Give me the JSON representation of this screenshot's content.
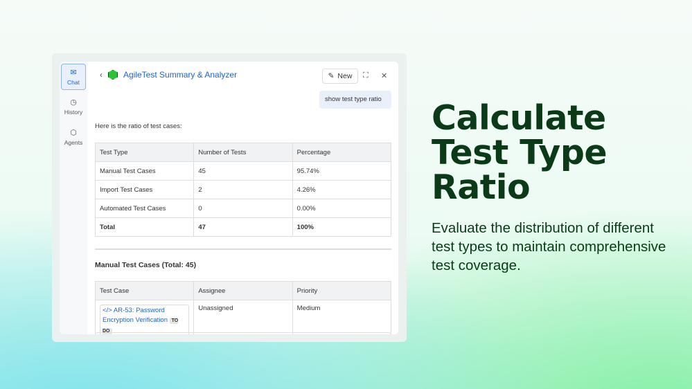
{
  "sidebar": {
    "items": [
      {
        "label": "Chat",
        "icon": "chat-sparkle-icon",
        "active": true
      },
      {
        "label": "History",
        "icon": "clock-icon"
      },
      {
        "label": "Agents",
        "icon": "agents-icon"
      }
    ]
  },
  "header": {
    "title": "AgileTest Summary & Analyzer",
    "new_label": "New"
  },
  "chat": {
    "user_message": "show test type ratio",
    "intro": "Here is the ratio of test cases:"
  },
  "ratio_table": {
    "headers": [
      "Test Type",
      "Number of Tests",
      "Percentage"
    ],
    "rows": [
      [
        "Manual Test Cases",
        "45",
        "95.74%"
      ],
      [
        "Import Test Cases",
        "2",
        "4.26%"
      ],
      [
        "Automated Test Cases",
        "0",
        "0.00%"
      ],
      [
        "Total",
        "47",
        "100%"
      ]
    ]
  },
  "manual_section": {
    "title": "Manual Test Cases (Total: 45)",
    "headers": [
      "Test Case",
      "Assignee",
      "Priority"
    ],
    "rows": [
      {
        "test_case": "AR-53: Password Encryption Verification",
        "status": "TO DO",
        "assignee": "Unassigned",
        "priority": "Medium"
      }
    ]
  },
  "hero": {
    "title": "Calculate Test Type Ratio",
    "description": "Evaluate the distribution of different test types to maintain comprehensive test coverage."
  }
}
